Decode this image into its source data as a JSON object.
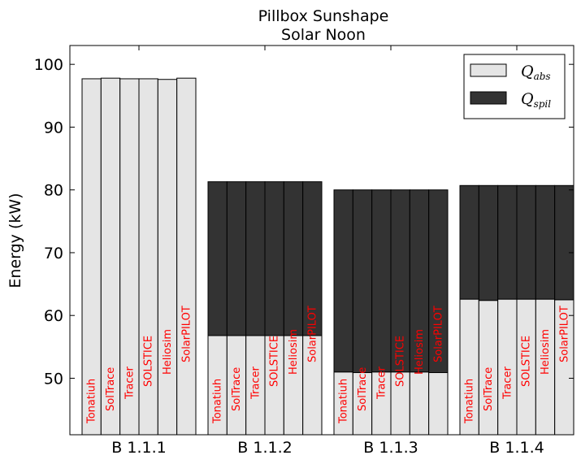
{
  "chart_data": {
    "type": "bar",
    "title": "Pillbox Sunshape",
    "subtitle": "Solar Noon",
    "ylabel": "Energy (kW)",
    "xlabel": "",
    "ylim": [
      41,
      103
    ],
    "yticks": [
      "50",
      "60",
      "70",
      "80",
      "90",
      "100"
    ],
    "categories": [
      "B 1.1.1",
      "B 1.1.2",
      "B 1.1.3",
      "B 1.1.4"
    ],
    "tools": [
      "Tonatiuh",
      "SolTrace",
      "Tracer",
      "SOLSTICE",
      "Heliosim",
      "SolarPILOT"
    ],
    "legend": {
      "position": "top-right",
      "entries": [
        {
          "main": "Q",
          "sub": "abs",
          "color": "#e5e5e5"
        },
        {
          "main": "Q",
          "sub": "spil",
          "color": "#333333"
        }
      ]
    },
    "series": [
      {
        "name": "Q_abs",
        "color": "#e5e5e5",
        "values": [
          [
            97.7,
            97.8,
            97.7,
            97.7,
            97.6,
            97.8
          ],
          [
            56.8,
            56.8,
            56.8,
            56.8,
            56.8,
            56.8
          ],
          [
            51.0,
            50.9,
            51.0,
            51.0,
            51.0,
            50.9
          ],
          [
            62.6,
            62.4,
            62.6,
            62.6,
            62.6,
            62.5
          ]
        ]
      },
      {
        "name": "Q_spil",
        "color": "#333333",
        "values": [
          [
            0.0,
            0.0,
            0.0,
            0.0,
            0.0,
            0.0
          ],
          [
            24.5,
            24.5,
            24.5,
            24.5,
            24.5,
            24.5
          ],
          [
            29.0,
            29.1,
            29.0,
            29.0,
            29.0,
            29.1
          ],
          [
            18.1,
            18.3,
            18.1,
            18.1,
            18.1,
            18.2
          ]
        ]
      }
    ]
  }
}
